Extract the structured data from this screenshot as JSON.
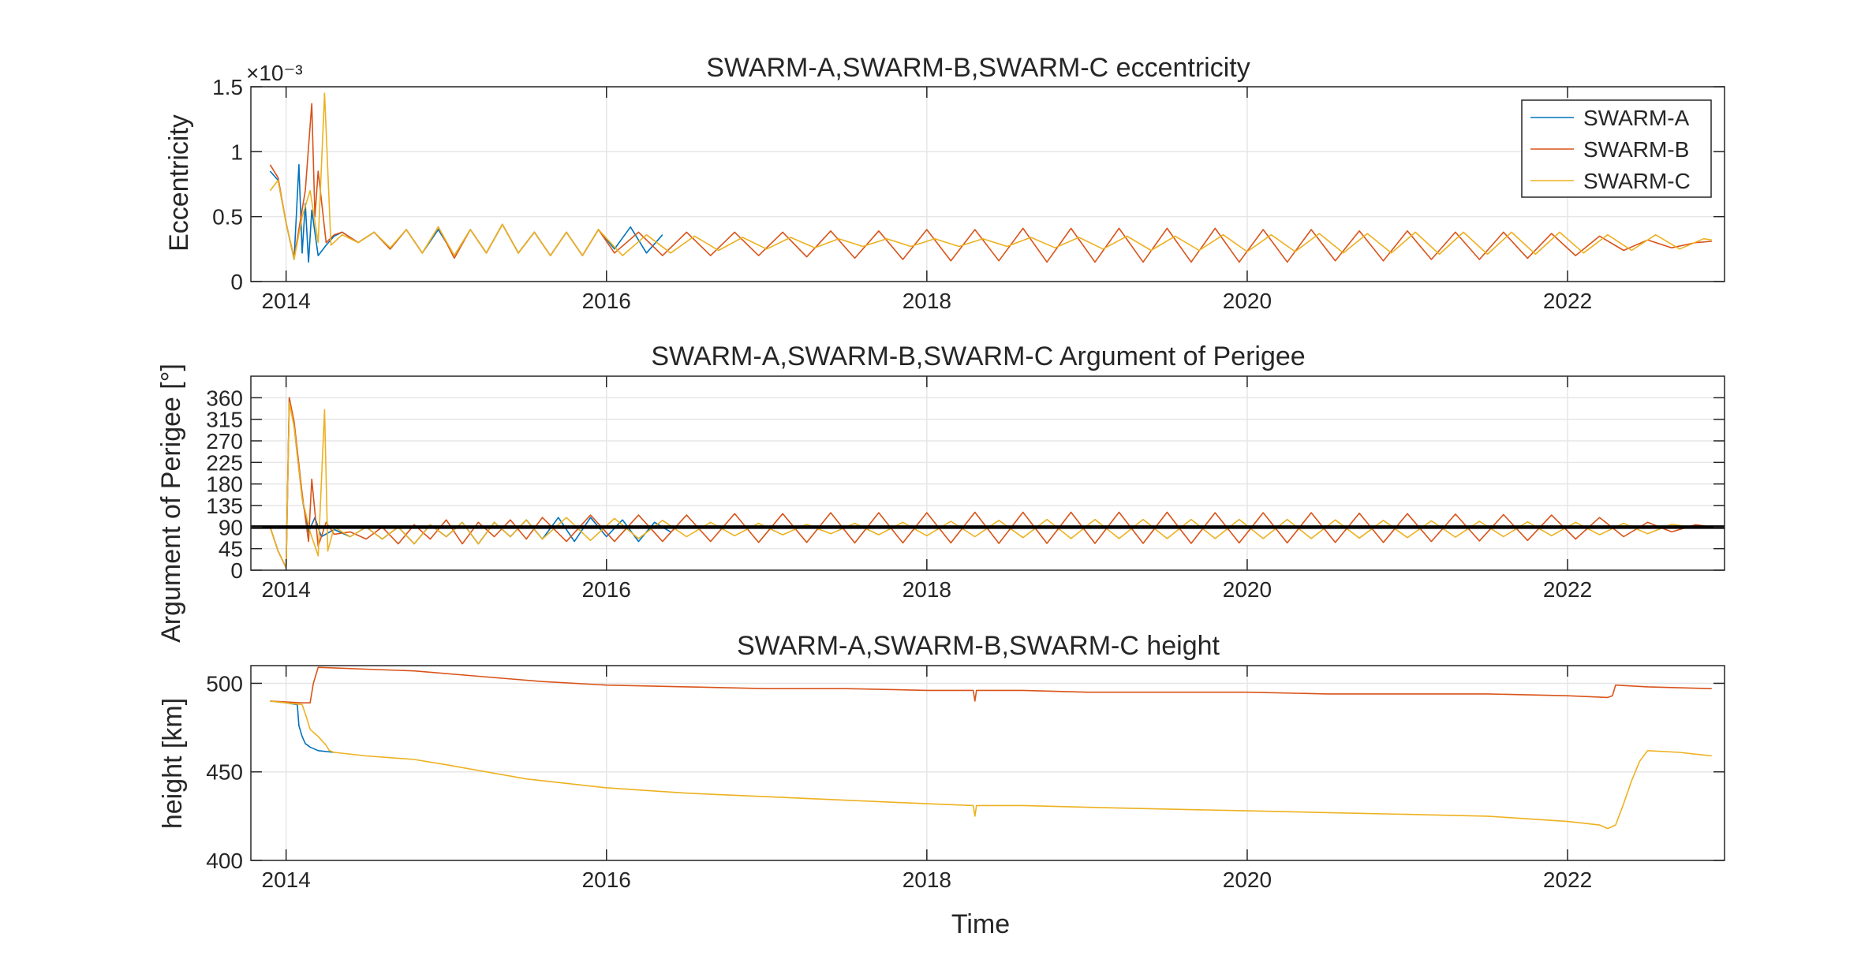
{
  "figure": {
    "xlabel": "Time"
  },
  "legend": {
    "entries": [
      "SWARM-A",
      "SWARM-B",
      "SWARM-C"
    ],
    "placement": "top-right of first panel"
  },
  "colors": {
    "SWARM-A": "#0072BD",
    "SWARM-B": "#D95319",
    "SWARM-C": "#EDB120",
    "reference_line": "#000000",
    "grid": "#e6e6e6",
    "axis": "#262626"
  },
  "chart_data": [
    {
      "type": "line",
      "title": "SWARM-A,SWARM-B,SWARM-C eccentricity",
      "xlabel": "",
      "ylabel": "Eccentricity",
      "y_exponent_label": "×10⁻³",
      "xlim": [
        2013.78,
        2022.98
      ],
      "ylim": [
        0,
        1.5
      ],
      "x_ticks": [
        2014,
        2016,
        2018,
        2020,
        2022
      ],
      "x_tick_labels": [
        "2014",
        "2016",
        "2018",
        "2020",
        "2022"
      ],
      "y_ticks": [
        0,
        0.5,
        1,
        1.5
      ],
      "y_tick_labels": [
        "0",
        "0.5",
        "1",
        "1.5"
      ],
      "grid": true,
      "legend": "top-right",
      "series": [
        {
          "name": "SWARM-A",
          "x": [
            2013.9,
            2013.95,
            2014.0,
            2014.05,
            2014.08,
            2014.1,
            2014.12,
            2014.14,
            2014.16,
            2014.2,
            2014.25,
            2014.3,
            2014.35,
            2014.45,
            2014.55,
            2014.65,
            2014.75,
            2014.85,
            2014.95,
            2015.05,
            2015.15,
            2015.25,
            2015.35,
            2015.45,
            2015.55,
            2015.65,
            2015.75,
            2015.85,
            2015.95,
            2016.05,
            2016.15,
            2016.25,
            2016.35
          ],
          "values": [
            0.85,
            0.78,
            0.45,
            0.17,
            0.9,
            0.22,
            0.6,
            0.15,
            0.55,
            0.2,
            0.28,
            0.35,
            0.38,
            0.3,
            0.38,
            0.25,
            0.4,
            0.22,
            0.4,
            0.2,
            0.4,
            0.22,
            0.44,
            0.22,
            0.38,
            0.2,
            0.38,
            0.2,
            0.4,
            0.25,
            0.42,
            0.22,
            0.36
          ]
        },
        {
          "name": "SWARM-B",
          "x": [
            2013.9,
            2013.95,
            2014.0,
            2014.05,
            2014.12,
            2014.16,
            2014.18,
            2014.2,
            2014.25,
            2014.3,
            2014.35,
            2014.45,
            2014.55,
            2014.65,
            2014.75,
            2014.85,
            2014.95,
            2015.05,
            2015.15,
            2015.25,
            2015.35,
            2015.45,
            2015.55,
            2015.65,
            2015.75,
            2015.85,
            2015.95,
            2016.05,
            2016.2,
            2016.35,
            2016.5,
            2016.65,
            2016.8,
            2016.95,
            2017.1,
            2017.25,
            2017.4,
            2017.55,
            2017.7,
            2017.85,
            2018.0,
            2018.15,
            2018.3,
            2018.45,
            2018.6,
            2018.75,
            2018.9,
            2019.05,
            2019.2,
            2019.35,
            2019.5,
            2019.65,
            2019.8,
            2019.95,
            2020.1,
            2020.25,
            2020.4,
            2020.55,
            2020.7,
            2020.85,
            2021.0,
            2021.15,
            2021.3,
            2021.45,
            2021.6,
            2021.75,
            2021.9,
            2022.05,
            2022.2,
            2022.35,
            2022.5,
            2022.65,
            2022.8,
            2022.9
          ],
          "values": [
            0.9,
            0.8,
            0.45,
            0.18,
            0.7,
            1.37,
            0.5,
            0.85,
            0.3,
            0.36,
            0.38,
            0.3,
            0.38,
            0.25,
            0.4,
            0.22,
            0.42,
            0.18,
            0.4,
            0.22,
            0.44,
            0.22,
            0.38,
            0.2,
            0.38,
            0.2,
            0.4,
            0.22,
            0.38,
            0.2,
            0.38,
            0.2,
            0.38,
            0.2,
            0.38,
            0.19,
            0.39,
            0.18,
            0.39,
            0.17,
            0.4,
            0.16,
            0.4,
            0.16,
            0.41,
            0.15,
            0.41,
            0.15,
            0.41,
            0.15,
            0.41,
            0.15,
            0.41,
            0.15,
            0.4,
            0.15,
            0.4,
            0.16,
            0.39,
            0.16,
            0.39,
            0.17,
            0.38,
            0.17,
            0.38,
            0.18,
            0.37,
            0.2,
            0.35,
            0.24,
            0.32,
            0.26,
            0.3,
            0.31
          ]
        },
        {
          "name": "SWARM-C",
          "x": [
            2013.9,
            2013.95,
            2014.0,
            2014.05,
            2014.1,
            2014.15,
            2014.2,
            2014.24,
            2014.28,
            2014.35,
            2014.45,
            2014.55,
            2014.65,
            2014.75,
            2014.85,
            2014.95,
            2015.05,
            2015.15,
            2015.25,
            2015.35,
            2015.45,
            2015.55,
            2015.65,
            2015.75,
            2015.85,
            2015.95,
            2016.1,
            2016.25,
            2016.4,
            2016.55,
            2016.7,
            2016.85,
            2017.0,
            2017.15,
            2017.3,
            2017.45,
            2017.6,
            2017.75,
            2017.9,
            2018.05,
            2018.2,
            2018.35,
            2018.5,
            2018.65,
            2018.8,
            2018.95,
            2019.1,
            2019.25,
            2019.4,
            2019.55,
            2019.7,
            2019.85,
            2020.0,
            2020.15,
            2020.3,
            2020.45,
            2020.6,
            2020.75,
            2020.9,
            2021.05,
            2021.2,
            2021.35,
            2021.5,
            2021.65,
            2021.8,
            2021.95,
            2022.1,
            2022.25,
            2022.4,
            2022.55,
            2022.7,
            2022.85,
            2022.9
          ],
          "values": [
            0.7,
            0.78,
            0.45,
            0.17,
            0.5,
            0.7,
            0.3,
            1.45,
            0.28,
            0.36,
            0.3,
            0.38,
            0.26,
            0.4,
            0.22,
            0.42,
            0.2,
            0.4,
            0.22,
            0.44,
            0.22,
            0.38,
            0.2,
            0.38,
            0.2,
            0.4,
            0.2,
            0.36,
            0.22,
            0.35,
            0.24,
            0.34,
            0.25,
            0.34,
            0.26,
            0.33,
            0.27,
            0.33,
            0.27,
            0.33,
            0.27,
            0.33,
            0.27,
            0.34,
            0.26,
            0.34,
            0.25,
            0.35,
            0.24,
            0.35,
            0.24,
            0.36,
            0.23,
            0.36,
            0.23,
            0.37,
            0.22,
            0.37,
            0.22,
            0.38,
            0.21,
            0.38,
            0.21,
            0.38,
            0.21,
            0.38,
            0.22,
            0.36,
            0.24,
            0.36,
            0.25,
            0.33,
            0.32
          ]
        }
      ]
    },
    {
      "type": "line",
      "title": "SWARM-A,SWARM-B,SWARM-C Argument of Perigee",
      "xlabel": "",
      "ylabel": "Argument of Perigee [°]",
      "xlim": [
        2013.78,
        2022.98
      ],
      "ylim": [
        0,
        405
      ],
      "x_ticks": [
        2014,
        2016,
        2018,
        2020,
        2022
      ],
      "x_tick_labels": [
        "2014",
        "2016",
        "2018",
        "2020",
        "2022"
      ],
      "y_ticks": [
        0,
        45,
        90,
        135,
        180,
        225,
        270,
        315,
        360
      ],
      "y_tick_labels": [
        "0",
        "45",
        "90",
        "135",
        "180",
        "225",
        "270",
        "315",
        "360"
      ],
      "grid": true,
      "reference_line": {
        "y": 90
      },
      "series": [
        {
          "name": "SWARM-A",
          "x": [
            2013.9,
            2013.95,
            2014.0,
            2014.02,
            2014.05,
            2014.1,
            2014.14,
            2014.18,
            2014.22,
            2014.3,
            2014.4,
            2014.5,
            2014.6,
            2014.7,
            2014.8,
            2014.9,
            2015.0,
            2015.1,
            2015.2,
            2015.3,
            2015.4,
            2015.5,
            2015.6,
            2015.7,
            2015.8,
            2015.9,
            2016.0,
            2016.1,
            2016.2,
            2016.3,
            2016.4
          ],
          "values": [
            90,
            40,
            5,
            360,
            300,
            150,
            80,
            110,
            70,
            85,
            70,
            90,
            65,
            90,
            55,
            95,
            70,
            100,
            55,
            100,
            70,
            105,
            65,
            110,
            60,
            110,
            70,
            105,
            60,
            100,
            80
          ]
        },
        {
          "name": "SWARM-B",
          "x": [
            2013.9,
            2013.95,
            2014.0,
            2014.02,
            2014.05,
            2014.1,
            2014.14,
            2014.16,
            2014.2,
            2014.25,
            2014.3,
            2014.4,
            2014.5,
            2014.6,
            2014.7,
            2014.8,
            2014.9,
            2015.0,
            2015.1,
            2015.2,
            2015.3,
            2015.4,
            2015.5,
            2015.6,
            2015.75,
            2015.9,
            2016.05,
            2016.2,
            2016.35,
            2016.5,
            2016.65,
            2016.8,
            2016.95,
            2017.1,
            2017.25,
            2017.4,
            2017.55,
            2017.7,
            2017.85,
            2018.0,
            2018.15,
            2018.3,
            2018.45,
            2018.6,
            2018.75,
            2018.9,
            2019.05,
            2019.2,
            2019.35,
            2019.5,
            2019.65,
            2019.8,
            2019.95,
            2020.1,
            2020.25,
            2020.4,
            2020.55,
            2020.7,
            2020.85,
            2021.0,
            2021.15,
            2021.3,
            2021.45,
            2021.6,
            2021.75,
            2021.9,
            2022.05,
            2022.2,
            2022.35,
            2022.5,
            2022.65,
            2022.8,
            2022.9
          ],
          "values": [
            90,
            40,
            5,
            360,
            310,
            160,
            60,
            190,
            50,
            100,
            75,
            80,
            65,
            90,
            55,
            95,
            65,
            105,
            55,
            100,
            70,
            105,
            65,
            110,
            60,
            115,
            60,
            115,
            60,
            115,
            60,
            118,
            58,
            118,
            58,
            120,
            57,
            120,
            57,
            120,
            57,
            121,
            56,
            121,
            56,
            121,
            56,
            121,
            56,
            121,
            56,
            120,
            57,
            120,
            57,
            120,
            58,
            119,
            58,
            118,
            60,
            117,
            61,
            116,
            62,
            115,
            65,
            110,
            70,
            100,
            80,
            95,
            90
          ]
        },
        {
          "name": "SWARM-C",
          "x": [
            2013.9,
            2013.95,
            2014.0,
            2014.02,
            2014.05,
            2014.1,
            2014.15,
            2014.2,
            2014.24,
            2014.26,
            2014.3,
            2014.4,
            2014.5,
            2014.6,
            2014.7,
            2014.8,
            2014.9,
            2015.0,
            2015.1,
            2015.2,
            2015.3,
            2015.4,
            2015.5,
            2015.6,
            2015.75,
            2015.9,
            2016.05,
            2016.2,
            2016.35,
            2016.5,
            2016.65,
            2016.8,
            2016.95,
            2017.1,
            2017.25,
            2017.4,
            2017.55,
            2017.7,
            2017.85,
            2018.0,
            2018.15,
            2018.3,
            2018.45,
            2018.6,
            2018.75,
            2018.9,
            2019.05,
            2019.2,
            2019.35,
            2019.5,
            2019.65,
            2019.8,
            2019.95,
            2020.1,
            2020.25,
            2020.4,
            2020.55,
            2020.7,
            2020.85,
            2021.0,
            2021.15,
            2021.3,
            2021.45,
            2021.6,
            2021.75,
            2021.9,
            2022.05,
            2022.2,
            2022.35,
            2022.5,
            2022.65,
            2022.8,
            2022.9
          ],
          "values": [
            90,
            40,
            5,
            350,
            300,
            150,
            80,
            30,
            335,
            40,
            90,
            70,
            90,
            65,
            90,
            55,
            95,
            70,
            100,
            55,
            100,
            70,
            105,
            65,
            110,
            62,
            108,
            66,
            104,
            70,
            100,
            72,
            98,
            74,
            96,
            76,
            98,
            74,
            100,
            72,
            102,
            70,
            104,
            68,
            106,
            66,
            106,
            66,
            106,
            66,
            106,
            66,
            106,
            66,
            106,
            66,
            105,
            67,
            104,
            68,
            103,
            69,
            102,
            70,
            101,
            72,
            100,
            74,
            98,
            76,
            96,
            88,
            92
          ]
        }
      ]
    },
    {
      "type": "line",
      "title": "SWARM-A,SWARM-B,SWARM-C height",
      "xlabel": "Time",
      "ylabel": "height [km]",
      "xlim": [
        2013.78,
        2022.98
      ],
      "ylim": [
        400,
        510
      ],
      "x_ticks": [
        2014,
        2016,
        2018,
        2020,
        2022
      ],
      "x_tick_labels": [
        "2014",
        "2016",
        "2018",
        "2020",
        "2022"
      ],
      "y_ticks": [
        400,
        450,
        500
      ],
      "y_tick_labels": [
        "400",
        "450",
        "500"
      ],
      "grid": true,
      "series": [
        {
          "name": "SWARM-A",
          "x": [
            2013.9,
            2014.0,
            2014.07,
            2014.08,
            2014.1,
            2014.12,
            2014.15,
            2014.2,
            2014.3
          ],
          "values": [
            490,
            489,
            488,
            476,
            470,
            466,
            464,
            462,
            461
          ]
        },
        {
          "name": "SWARM-B",
          "x": [
            2013.9,
            2014.1,
            2014.15,
            2014.17,
            2014.2,
            2014.5,
            2014.8,
            2015.2,
            2015.6,
            2016.0,
            2016.5,
            2017.0,
            2017.5,
            2018.0,
            2018.29,
            2018.3,
            2018.31,
            2018.6,
            2019.0,
            2019.5,
            2020.0,
            2020.5,
            2021.0,
            2021.5,
            2022.0,
            2022.25,
            2022.28,
            2022.3,
            2022.5,
            2022.9
          ],
          "values": [
            490,
            489,
            489,
            500,
            509,
            508,
            507,
            504,
            501,
            499,
            498,
            497,
            497,
            496,
            496,
            490,
            496,
            496,
            495,
            495,
            495,
            494,
            494,
            494,
            493,
            492,
            493,
            499,
            498,
            497
          ]
        },
        {
          "name": "SWARM-C",
          "x": [
            2013.9,
            2014.0,
            2014.1,
            2014.13,
            2014.15,
            2014.2,
            2014.25,
            2014.27,
            2014.3,
            2014.5,
            2014.8,
            2015.0,
            2015.5,
            2016.0,
            2016.5,
            2017.0,
            2017.5,
            2018.0,
            2018.29,
            2018.3,
            2018.31,
            2018.6,
            2019.0,
            2019.5,
            2020.0,
            2020.5,
            2021.0,
            2021.5,
            2022.0,
            2022.2,
            2022.25,
            2022.3,
            2022.35,
            2022.4,
            2022.45,
            2022.5,
            2022.7,
            2022.9
          ],
          "values": [
            490,
            489,
            488,
            480,
            474,
            470,
            465,
            462,
            461,
            459,
            457,
            454,
            446,
            441,
            438,
            436,
            434,
            432,
            431,
            425,
            431,
            431,
            430,
            429,
            428,
            427,
            426,
            425,
            422,
            420,
            418,
            420,
            432,
            445,
            456,
            462,
            461,
            459
          ]
        }
      ]
    }
  ]
}
